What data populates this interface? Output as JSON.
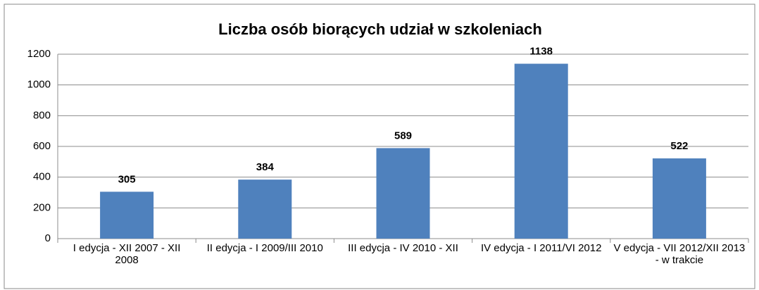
{
  "chart_data": {
    "type": "bar",
    "title": "Liczba osób biorących udział w szkoleniach",
    "categories": [
      "I edycja - XII 2007 - XII 2008",
      "II edycja - I 2009/III 2010",
      "III edycja - IV 2010 - XII",
      "IV edycja - I 2011/VI 2012",
      "V edycja - VII 2012/XII 2013 - w trakcie"
    ],
    "values": [
      305,
      384,
      589,
      1138,
      522
    ],
    "color": "#4f81bd",
    "ylim": [
      0,
      1200
    ],
    "yticks": [
      0,
      200,
      400,
      600,
      800,
      1000,
      1200
    ],
    "grid": true
  }
}
